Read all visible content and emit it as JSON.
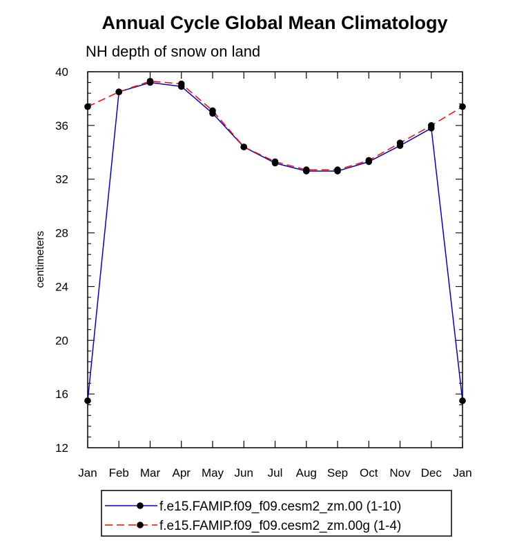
{
  "chart_data": {
    "type": "line",
    "title": "Annual Cycle Global Mean Climatology",
    "subtitle": "NH depth of snow on land",
    "xlabel": "",
    "ylabel": "centimeters",
    "categories": [
      "Jan",
      "Feb",
      "Mar",
      "Apr",
      "May",
      "Jun",
      "Jul",
      "Aug",
      "Sep",
      "Oct",
      "Nov",
      "Dec",
      "Jan"
    ],
    "ylim": [
      12,
      40
    ],
    "yticks": [
      "12",
      "16",
      "20",
      "24",
      "28",
      "32",
      "36",
      "40"
    ],
    "grid": false,
    "legend_position": "bottom",
    "series": [
      {
        "name": "f.e15.FAMIP.f09_f09.cesm2_zm.00 (1-10)",
        "color": "#0000cc",
        "line_style": "solid",
        "marker": "filled-circle",
        "values": [
          15.5,
          38.5,
          39.2,
          38.9,
          36.9,
          34.4,
          33.2,
          32.6,
          32.6,
          33.3,
          34.5,
          35.8,
          15.5
        ]
      },
      {
        "name": "f.e15.FAMIP.f09_f09.cesm2_zm.00g (1-4)",
        "color": "#ff0000",
        "line_style": "dashed",
        "marker": "filled-circle",
        "values": [
          37.4,
          38.5,
          39.3,
          39.1,
          37.1,
          34.4,
          33.3,
          32.7,
          32.7,
          33.4,
          34.7,
          36.0,
          37.4
        ]
      }
    ]
  }
}
